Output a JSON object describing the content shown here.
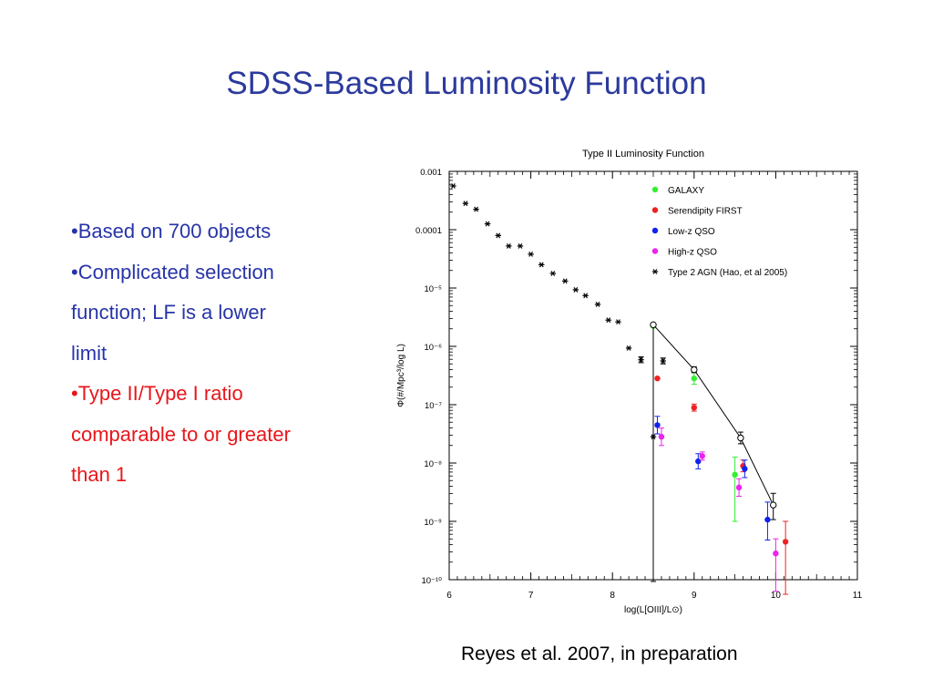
{
  "slide": {
    "title": "SDSS-Based Luminosity Function",
    "bullets": [
      {
        "lines": [
          "•Based on 700 objects"
        ],
        "color": "#2734a8"
      },
      {
        "lines": [
          "•Complicated selection",
          "function; LF is a lower",
          "limit"
        ],
        "color": "#2734a8"
      },
      {
        "lines": [
          "•Type II/Type I ratio",
          "comparable to or greater",
          "than 1"
        ],
        "color": "#e8161b"
      }
    ],
    "caption": "Reyes et al. 2007, in preparation"
  },
  "chart_data": {
    "type": "scatter",
    "title": "Type II Luminosity Function",
    "xlabel": "log(L[OIII]/L⊙)",
    "ylabel": "Φ(#/Mpc³/log L)",
    "xlim": [
      6,
      11
    ],
    "ylim_log10": [
      -10,
      -3
    ],
    "y_scale": "log",
    "x_ticks": [
      "6",
      "7",
      "8",
      "9",
      "10",
      "11"
    ],
    "y_ticks": [
      {
        "exp": -3,
        "label": "0.001"
      },
      {
        "exp": -4,
        "label": "0.0001"
      },
      {
        "exp": -5,
        "label": "10⁻⁵"
      },
      {
        "exp": -6,
        "label": "10⁻⁶"
      },
      {
        "exp": -7,
        "label": "10⁻⁷"
      },
      {
        "exp": -8,
        "label": "10⁻⁸"
      },
      {
        "exp": -9,
        "label": "10⁻⁹"
      },
      {
        "exp": -10,
        "label": "10⁻¹⁰"
      }
    ],
    "legend_position": "top-right",
    "series": [
      {
        "name": "GALAXY",
        "color": "#33ee33",
        "marker": "dot",
        "points": [
          {
            "x": 8.5,
            "log_y": -5.65
          },
          {
            "x": 9.0,
            "log_y": -6.55,
            "err_lo": 0.1,
            "err_hi": 0.1
          },
          {
            "x": 9.5,
            "log_y": -8.2,
            "err_lo": 0.8,
            "err_hi": 0.3
          }
        ]
      },
      {
        "name": "Serendipity FIRST",
        "color": "#ee2222",
        "marker": "dot",
        "points": [
          {
            "x": 8.55,
            "log_y": -6.55
          },
          {
            "x": 9.0,
            "log_y": -7.05,
            "err_lo": 0.06,
            "err_hi": 0.06
          },
          {
            "x": 9.6,
            "log_y": -8.05,
            "err_lo": 0.1,
            "err_hi": 0.1
          },
          {
            "x": 10.12,
            "log_y": -9.35,
            "err_lo": 0.9,
            "err_hi": 0.35
          }
        ]
      },
      {
        "name": "Low-z QSO",
        "color": "#1122ee",
        "marker": "dot",
        "points": [
          {
            "x": 8.55,
            "log_y": -7.35,
            "err_lo": 0.15,
            "err_hi": 0.15
          },
          {
            "x": 9.05,
            "log_y": -7.97,
            "err_lo": 0.13,
            "err_hi": 0.13
          },
          {
            "x": 9.62,
            "log_y": -8.1,
            "err_lo": 0.15,
            "err_hi": 0.15
          },
          {
            "x": 9.9,
            "log_y": -8.97,
            "err_lo": 0.35,
            "err_hi": 0.3
          }
        ]
      },
      {
        "name": "High-z QSO",
        "color": "#ee22ee",
        "marker": "dot",
        "points": [
          {
            "x": 8.6,
            "log_y": -7.55,
            "err_lo": 0.15,
            "err_hi": 0.15
          },
          {
            "x": 9.1,
            "log_y": -7.88,
            "err_lo": 0.07,
            "err_hi": 0.07
          },
          {
            "x": 9.55,
            "log_y": -8.42,
            "err_lo": 0.15,
            "err_hi": 0.15
          },
          {
            "x": 10.0,
            "log_y": -9.55,
            "err_lo": 0.65,
            "err_hi": 0.25
          }
        ]
      },
      {
        "name": "Type 2 AGN (Hao, et al 2005)",
        "color": "#000000",
        "marker": "star",
        "points": [
          {
            "x": 6.05,
            "log_y": -3.25
          },
          {
            "x": 6.2,
            "log_y": -3.55
          },
          {
            "x": 6.33,
            "log_y": -3.65
          },
          {
            "x": 6.47,
            "log_y": -3.9
          },
          {
            "x": 6.6,
            "log_y": -4.1
          },
          {
            "x": 6.73,
            "log_y": -4.28
          },
          {
            "x": 6.87,
            "log_y": -4.28
          },
          {
            "x": 7.0,
            "log_y": -4.42
          },
          {
            "x": 7.13,
            "log_y": -4.6
          },
          {
            "x": 7.27,
            "log_y": -4.75
          },
          {
            "x": 7.42,
            "log_y": -4.88
          },
          {
            "x": 7.55,
            "log_y": -5.03
          },
          {
            "x": 7.67,
            "log_y": -5.13
          },
          {
            "x": 7.82,
            "log_y": -5.28
          },
          {
            "x": 7.95,
            "log_y": -5.55
          },
          {
            "x": 8.07,
            "log_y": -5.58
          },
          {
            "x": 8.2,
            "log_y": -6.03
          },
          {
            "x": 8.35,
            "log_y": -6.23,
            "err_lo": 0.05,
            "err_hi": 0.05
          },
          {
            "x": 8.5,
            "log_y": -7.55
          },
          {
            "x": 8.62,
            "log_y": -6.25,
            "err_lo": 0.05,
            "err_hi": 0.05
          }
        ]
      },
      {
        "name": "",
        "color": "#000000",
        "marker": "open-circle",
        "line": true,
        "points": [
          {
            "x": 8.5,
            "log_y": -5.63,
            "err_lo": 4.4,
            "err_hi": 0.0
          },
          {
            "x": 9.0,
            "log_y": -6.4,
            "err_lo": 0.05,
            "err_hi": 0.05
          },
          {
            "x": 9.57,
            "log_y": -7.57,
            "err_lo": 0.1,
            "err_hi": 0.1
          },
          {
            "x": 9.97,
            "log_y": -8.72,
            "err_lo": 0.25,
            "err_hi": 0.2
          }
        ]
      }
    ]
  }
}
